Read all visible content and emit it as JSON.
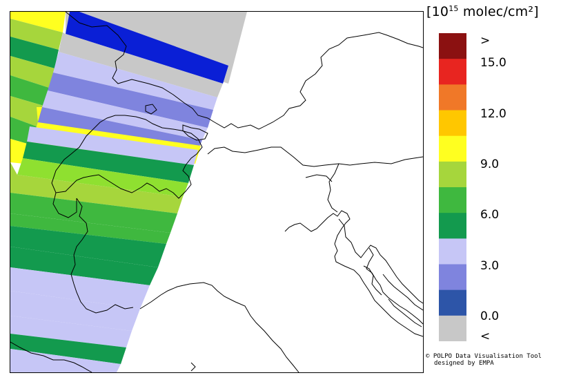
{
  "legend": {
    "unit_prefix": "[10",
    "unit_exponent": "15",
    "unit_suffix": " molec/cm²]",
    "labels": [
      ">",
      "15.0",
      "12.0",
      "9.0",
      "6.0",
      "3.0",
      "0.0",
      "<"
    ],
    "colors": [
      "#8b1111",
      "#e82520",
      "#f07828",
      "#ffc700",
      "#ffff20",
      "#a6d63c",
      "#3fb83f",
      "#139a4e",
      "#c6c6f6",
      "#7f84de",
      "#2d55a8",
      "#c8c8c8"
    ]
  },
  "credit": {
    "line1": "© POLPO Data Visualisation Tool",
    "line2": "designed by EMPA"
  },
  "map": {
    "background": "#ffffff",
    "no_data_color": "#c8c8c8",
    "swath_colors": {
      "yellow": "#ffff20",
      "yellow_green": "#a6d63c",
      "green": "#3fb83f",
      "dark_green": "#139a4e",
      "lavender": "#c6c6f6",
      "periwinkle": "#7f84de",
      "blue": "#0a1fd6",
      "light_green": "#8fe030"
    }
  }
}
